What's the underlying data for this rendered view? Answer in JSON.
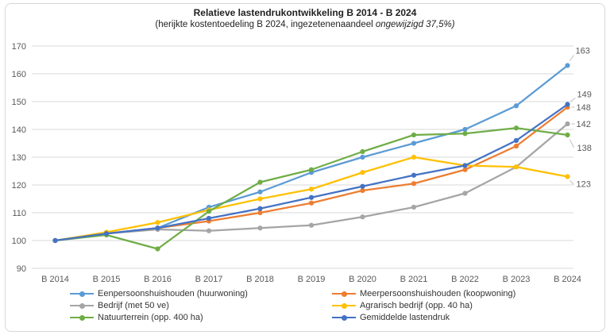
{
  "chart_data": {
    "type": "line",
    "title": "Relatieve lastendrukontwikkeling B 2014 - B 2024",
    "subtitle_prefix": "(herijkte kostentoedeling B 2024, ingezetenenaandeel ",
    "subtitle_italic": "ongewijzigd 37,5%)",
    "categories": [
      "B 2014",
      "B 2015",
      "B 2016",
      "B 2017",
      "B 2018",
      "B 2019",
      "B 2020",
      "B 2021",
      "B 2022",
      "B 2023",
      "B 2024"
    ],
    "series": [
      {
        "name": "Eenpersoonshuishouden (huurwoning)",
        "color": "#5B9BD5",
        "values": [
          100,
          102.5,
          104.5,
          112,
          117.5,
          124.5,
          130,
          135,
          140,
          148.5,
          163
        ],
        "end_label": "163"
      },
      {
        "name": "Meerpersoonshuishouden (koopwoning)",
        "color": "#ED7D31",
        "values": [
          100,
          102.5,
          104.5,
          107,
          110,
          113.5,
          118,
          120.5,
          125.5,
          134,
          148
        ],
        "end_label": "148"
      },
      {
        "name": "Bedrijf (met 50 ve)",
        "color": "#A5A5A5",
        "values": [
          100,
          102.5,
          104,
          103.5,
          104.5,
          105.5,
          108.5,
          112,
          117,
          126.5,
          142
        ],
        "end_label": "142"
      },
      {
        "name": "Agrarisch bedrijf (opp. 40 ha)",
        "color": "#FFC000",
        "values": [
          100,
          103,
          106.5,
          111,
          115,
          118.5,
          124.5,
          130,
          127,
          126.5,
          123
        ],
        "end_label": "123"
      },
      {
        "name": "Natuurterrein (opp. 400 ha)",
        "color": "#70AD47",
        "values": [
          100,
          102,
          97,
          110.5,
          121,
          125.5,
          132,
          138,
          138.5,
          140.5,
          138
        ],
        "end_label": "138"
      },
      {
        "name": "Gemiddelde lastendruk",
        "color": "#4472C4",
        "values": [
          100,
          102.5,
          104.5,
          108,
          111.5,
          115.5,
          119.5,
          123.5,
          127,
          136,
          149
        ],
        "end_label": "149"
      }
    ],
    "ylim": [
      90,
      170
    ],
    "ytick_step": 10,
    "grid": true,
    "grid_color": "#d9d9d9",
    "text_color": "#595959",
    "leader_color": "#bfbfbf",
    "legend_position": "bottom"
  }
}
